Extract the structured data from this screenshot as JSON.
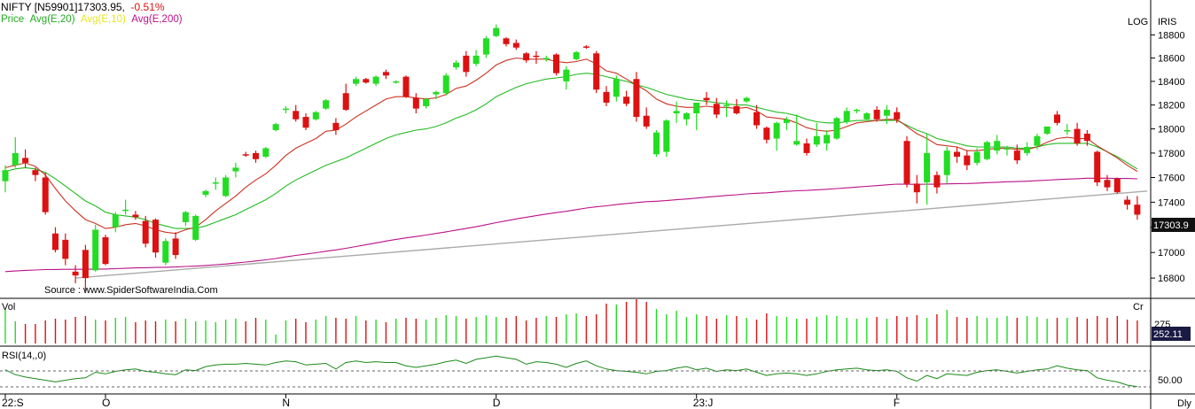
{
  "header": {
    "symbol": "NIFTY [N59901]",
    "last": "17303.95,",
    "change": "-0.51%",
    "legend_price": "Price",
    "legend_avg20": "Avg(E,20)",
    "legend_avg10": "Avg(E,10)",
    "legend_avg200": "Avg(E,200)",
    "log_label": "LOG",
    "brand": "IRIS"
  },
  "colors": {
    "up": "#22dd22",
    "down": "#dd1111",
    "avg20": "#22bb22",
    "avg10": "#eeee33",
    "avg200": "#bb1188",
    "trendline": "#aaaaaa",
    "rsi": "#1a8a1a",
    "last_price_bg": "#111111",
    "last_volume_bg": "#1a1a44"
  },
  "source": "Source : www.SpiderSoftwareIndia.Com",
  "panes": {
    "volume_label": "Vol",
    "volume_unit": "Cr",
    "volume_last": "252.11",
    "volume_tick": "275",
    "rsi_label": "RSI(14,,0)",
    "rsi_tick": "50.00",
    "period": "Dly"
  },
  "price_badge": "17303.9",
  "chart_data": {
    "type": "candlestick",
    "title": "NIFTY [N59901]",
    "scale": "log",
    "ylim": [
      16650,
      18950
    ],
    "y_ticks": [
      16800,
      17000,
      17200,
      17400,
      17600,
      17800,
      18000,
      18200,
      18400,
      18600,
      18800
    ],
    "x_tick_labels": [
      "22:S",
      "O",
      "N",
      "D",
      "23:J",
      "F"
    ],
    "x_tick_index": [
      0,
      10,
      28,
      49,
      69,
      89
    ],
    "candles": [
      [
        17570,
        17700,
        17480,
        17660
      ],
      [
        17700,
        17930,
        17680,
        17800
      ],
      [
        17760,
        17830,
        17680,
        17720
      ],
      [
        17660,
        17680,
        17570,
        17620
      ],
      [
        17600,
        17640,
        17300,
        17320
      ],
      [
        17150,
        17200,
        17000,
        17020
      ],
      [
        17100,
        17150,
        16900,
        16950
      ],
      [
        16850,
        16900,
        16760,
        16820
      ],
      [
        17020,
        17060,
        16700,
        16800
      ],
      [
        16860,
        17220,
        16850,
        17180
      ],
      [
        17120,
        17140,
        16900,
        16910
      ],
      [
        17200,
        17320,
        17160,
        17300
      ],
      [
        17330,
        17420,
        17300,
        17340
      ],
      [
        17300,
        17330,
        17260,
        17280
      ],
      [
        17250,
        17290,
        17040,
        17070
      ],
      [
        17260,
        17270,
        16960,
        17000
      ],
      [
        16920,
        17110,
        16900,
        17090
      ],
      [
        17110,
        17160,
        16950,
        16980
      ],
      [
        17240,
        17330,
        17210,
        17320
      ],
      [
        17100,
        17300,
        17090,
        17290
      ],
      [
        17460,
        17500,
        17440,
        17490
      ],
      [
        17560,
        17600,
        17500,
        17560
      ],
      [
        17450,
        17620,
        17440,
        17600
      ],
      [
        17650,
        17720,
        17600,
        17680
      ],
      [
        17790,
        17810,
        17770,
        17785
      ],
      [
        17800,
        17820,
        17720,
        17750
      ],
      [
        17770,
        17850,
        17760,
        17840
      ],
      [
        17990,
        18050,
        17980,
        18040
      ],
      [
        18160,
        18190,
        18130,
        18170
      ],
      [
        18150,
        18200,
        18060,
        18080
      ],
      [
        18100,
        18130,
        17990,
        18010
      ],
      [
        18080,
        18150,
        18070,
        18140
      ],
      [
        18170,
        18250,
        18160,
        18240
      ],
      [
        18050,
        18090,
        17950,
        17990
      ],
      [
        18300,
        18380,
        18150,
        18160
      ],
      [
        18380,
        18440,
        18360,
        18420
      ],
      [
        18420,
        18430,
        18380,
        18390
      ],
      [
        18380,
        18450,
        18360,
        18440
      ],
      [
        18480,
        18500,
        18420,
        18450
      ],
      [
        18390,
        18410,
        18380,
        18400
      ],
      [
        18440,
        18450,
        18260,
        18270
      ],
      [
        18260,
        18300,
        18130,
        18170
      ],
      [
        18190,
        18260,
        18170,
        18250
      ],
      [
        18290,
        18320,
        18250,
        18310
      ],
      [
        18300,
        18470,
        18280,
        18450
      ],
      [
        18520,
        18580,
        18500,
        18560
      ],
      [
        18620,
        18660,
        18440,
        18480
      ],
      [
        18550,
        18670,
        18530,
        18620
      ],
      [
        18630,
        18790,
        18600,
        18770
      ],
      [
        18790,
        18890,
        18780,
        18860
      ],
      [
        18770,
        18780,
        18700,
        18720
      ],
      [
        18730,
        18760,
        18670,
        18690
      ],
      [
        18640,
        18650,
        18560,
        18580
      ],
      [
        18620,
        18660,
        18550,
        18610
      ],
      [
        18590,
        18620,
        18570,
        18600
      ],
      [
        18630,
        18640,
        18450,
        18470
      ],
      [
        18400,
        18530,
        18330,
        18500
      ],
      [
        18590,
        18660,
        18580,
        18650
      ],
      [
        18700,
        18710,
        18680,
        18690
      ],
      [
        18640,
        18660,
        18300,
        18330
      ],
      [
        18310,
        18360,
        18190,
        18220
      ],
      [
        18270,
        18450,
        18230,
        18420
      ],
      [
        18270,
        18320,
        18190,
        18210
      ],
      [
        18420,
        18480,
        18060,
        18100
      ],
      [
        18110,
        18180,
        18000,
        18020
      ],
      [
        17790,
        17990,
        17770,
        17970
      ],
      [
        17810,
        18080,
        17770,
        18070
      ],
      [
        18130,
        18230,
        18050,
        18150
      ],
      [
        18080,
        18140,
        18030,
        18130
      ],
      [
        18130,
        18200,
        17990,
        18220
      ],
      [
        18260,
        18310,
        18200,
        18240
      ],
      [
        18210,
        18260,
        18090,
        18120
      ],
      [
        18200,
        18240,
        18100,
        18200
      ],
      [
        18190,
        18250,
        18120,
        18130
      ],
      [
        18230,
        18270,
        18220,
        18260
      ],
      [
        18140,
        18200,
        18000,
        18030
      ],
      [
        18010,
        18020,
        17880,
        17910
      ],
      [
        17920,
        18060,
        17820,
        18050
      ],
      [
        18050,
        18100,
        17990,
        18080
      ],
      [
        17870,
        18120,
        17860,
        17900
      ],
      [
        17880,
        17920,
        17780,
        17800
      ],
      [
        17870,
        18050,
        17850,
        17940
      ],
      [
        17880,
        17990,
        17820,
        17950
      ],
      [
        17920,
        18100,
        17910,
        18090
      ],
      [
        18060,
        18180,
        18040,
        18150
      ],
      [
        18150,
        18170,
        18130,
        18160
      ],
      [
        18080,
        18140,
        18070,
        18130
      ],
      [
        18160,
        18190,
        18060,
        18080
      ],
      [
        18110,
        18200,
        18040,
        18160
      ],
      [
        18140,
        18180,
        18050,
        18080
      ],
      [
        17900,
        17940,
        17520,
        17550
      ],
      [
        17550,
        17620,
        17390,
        17480
      ],
      [
        17560,
        17960,
        17380,
        17800
      ],
      [
        17620,
        17650,
        17470,
        17520
      ],
      [
        17620,
        17850,
        17550,
        17820
      ],
      [
        17810,
        17850,
        17720,
        17770
      ],
      [
        17780,
        17820,
        17660,
        17700
      ],
      [
        17720,
        17840,
        17700,
        17810
      ],
      [
        17750,
        17900,
        17740,
        17890
      ],
      [
        17820,
        17950,
        17790,
        17900
      ],
      [
        17830,
        17860,
        17780,
        17840
      ],
      [
        17820,
        17870,
        17710,
        17740
      ],
      [
        17800,
        17890,
        17780,
        17850
      ],
      [
        17860,
        17960,
        17830,
        17940
      ],
      [
        17960,
        18020,
        17950,
        18020
      ],
      [
        18120,
        18150,
        18030,
        18050
      ],
      [
        17980,
        18040,
        17950,
        17990
      ],
      [
        18000,
        18050,
        17860,
        17880
      ],
      [
        17960,
        17990,
        17860,
        17900
      ],
      [
        17810,
        17820,
        17530,
        17560
      ],
      [
        17580,
        17620,
        17490,
        17520
      ],
      [
        17590,
        17600,
        17470,
        17480
      ],
      [
        17420,
        17450,
        17340,
        17380
      ],
      [
        17380,
        17450,
        17260,
        17300
      ]
    ],
    "ema10": [
      17680,
      17700,
      17720,
      17690,
      17620,
      17510,
      17410,
      17330,
      17260,
      17230,
      17190,
      17200,
      17220,
      17230,
      17210,
      17180,
      17160,
      17150,
      17180,
      17200,
      17260,
      17330,
      17390,
      17450,
      17520,
      17580,
      17630,
      17700,
      17780,
      17840,
      17880,
      17920,
      17980,
      17990,
      18040,
      18100,
      18150,
      18200,
      18250,
      18270,
      18270,
      18260,
      18250,
      18260,
      18290,
      18340,
      18360,
      18410,
      18470,
      18540,
      18580,
      18600,
      18590,
      18590,
      18590,
      18570,
      18560,
      18570,
      18590,
      18550,
      18490,
      18470,
      18420,
      18370,
      18320,
      18250,
      18210,
      18190,
      18180,
      18180,
      18190,
      18180,
      18180,
      18170,
      18180,
      18150,
      18100,
      18090,
      18080,
      18050,
      18010,
      17990,
      17980,
      17990,
      18020,
      18050,
      18060,
      18070,
      18080,
      18080,
      18020,
      17960,
      17920,
      17870,
      17860,
      17850,
      17820,
      17820,
      17830,
      17840,
      17840,
      17830,
      17830,
      17850,
      17890,
      17920,
      17930,
      17920,
      17920,
      17860,
      17810,
      17760,
      17700,
      17650
    ],
    "ema20": [
      17650,
      17670,
      17680,
      17670,
      17640,
      17590,
      17530,
      17470,
      17410,
      17370,
      17320,
      17300,
      17290,
      17280,
      17260,
      17230,
      17210,
      17190,
      17190,
      17190,
      17210,
      17240,
      17270,
      17300,
      17340,
      17380,
      17420,
      17470,
      17530,
      17580,
      17620,
      17660,
      17700,
      17730,
      17760,
      17800,
      17840,
      17880,
      17920,
      17950,
      17970,
      17990,
      18000,
      18020,
      18050,
      18090,
      18120,
      18160,
      18210,
      18270,
      18310,
      18350,
      18380,
      18400,
      18420,
      18430,
      18440,
      18460,
      18470,
      18460,
      18440,
      18420,
      18400,
      18370,
      18350,
      18320,
      18290,
      18270,
      18250,
      18240,
      18230,
      18220,
      18210,
      18200,
      18200,
      18180,
      18160,
      18140,
      18130,
      18110,
      18080,
      18060,
      18050,
      18050,
      18060,
      18070,
      18070,
      18070,
      18070,
      18070,
      18030,
      17990,
      17960,
      17920,
      17900,
      17880,
      17860,
      17850,
      17850,
      17850,
      17850,
      17840,
      17840,
      17850,
      17870,
      17880,
      17880,
      17880,
      17880,
      17850,
      17810,
      17770,
      17720,
      17670
    ],
    "ema200": [
      16850,
      16855,
      16860,
      16863,
      16866,
      16867,
      16868,
      16868,
      16868,
      16870,
      16870,
      16873,
      16876,
      16879,
      16881,
      16883,
      16884,
      16886,
      16890,
      16893,
      16898,
      16904,
      16910,
      16917,
      16925,
      16933,
      16942,
      16953,
      16965,
      16977,
      16987,
      16998,
      17010,
      17020,
      17033,
      17047,
      17061,
      17075,
      17090,
      17103,
      17115,
      17126,
      17138,
      17150,
      17163,
      17177,
      17190,
      17204,
      17220,
      17236,
      17251,
      17266,
      17279,
      17292,
      17305,
      17316,
      17327,
      17340,
      17353,
      17363,
      17371,
      17381,
      17389,
      17397,
      17404,
      17408,
      17413,
      17420,
      17426,
      17433,
      17441,
      17447,
      17454,
      17460,
      17467,
      17472,
      17476,
      17482,
      17488,
      17492,
      17495,
      17500,
      17504,
      17510,
      17516,
      17522,
      17528,
      17534,
      17540,
      17546,
      17545,
      17544,
      17546,
      17545,
      17548,
      17550,
      17551,
      17554,
      17558,
      17561,
      17565,
      17567,
      17570,
      17574,
      17578,
      17583,
      17587,
      17590,
      17594,
      17594,
      17594,
      17593,
      17592,
      17589
    ],
    "trendline": {
      "start": [
        7,
        16800
      ],
      "end": [
        114,
        17490
      ],
      "color": "gray"
    },
    "volume": [
      38,
      25,
      22,
      22,
      26,
      28,
      27,
      30,
      31,
      27,
      26,
      29,
      30,
      24,
      26,
      25,
      27,
      25,
      28,
      25,
      26,
      24,
      27,
      28,
      25,
      29,
      27,
      10,
      26,
      28,
      24,
      27,
      31,
      29,
      28,
      31,
      26,
      27,
      24,
      28,
      29,
      28,
      27,
      29,
      32,
      31,
      28,
      30,
      32,
      30,
      29,
      31,
      26,
      29,
      31,
      30,
      33,
      34,
      31,
      33,
      45,
      44,
      47,
      50,
      47,
      39,
      33,
      37,
      30,
      33,
      31,
      28,
      32,
      31,
      29,
      27,
      34,
      31,
      30,
      28,
      28,
      30,
      32,
      31,
      29,
      28,
      29,
      30,
      28,
      31,
      30,
      32,
      29,
      33,
      38,
      30,
      29,
      31,
      29,
      29,
      31,
      29,
      31,
      30,
      28,
      29,
      29,
      30,
      28,
      31,
      29,
      31,
      27,
      26
    ],
    "rsi": [
      55,
      49,
      46,
      44,
      42,
      40,
      42,
      44,
      45,
      52,
      50,
      53,
      55,
      56,
      53,
      52,
      50,
      49,
      55,
      54,
      59,
      61,
      62,
      62,
      63,
      62,
      61,
      64,
      66,
      65,
      61,
      62,
      63,
      56,
      64,
      66,
      64,
      65,
      64,
      64,
      60,
      58,
      60,
      62,
      65,
      67,
      63,
      68,
      70,
      72,
      70,
      68,
      62,
      65,
      64,
      62,
      58,
      63,
      66,
      60,
      56,
      54,
      53,
      52,
      50,
      53,
      54,
      57,
      59,
      55,
      57,
      53,
      55,
      54,
      56,
      52,
      48,
      50,
      51,
      50,
      48,
      50,
      53,
      55,
      56,
      57,
      55,
      54,
      55,
      53,
      45,
      41,
      48,
      44,
      50,
      49,
      48,
      52,
      54,
      55,
      53,
      51,
      53,
      55,
      56,
      60,
      57,
      55,
      54,
      45,
      42,
      40,
      36,
      34
    ]
  }
}
